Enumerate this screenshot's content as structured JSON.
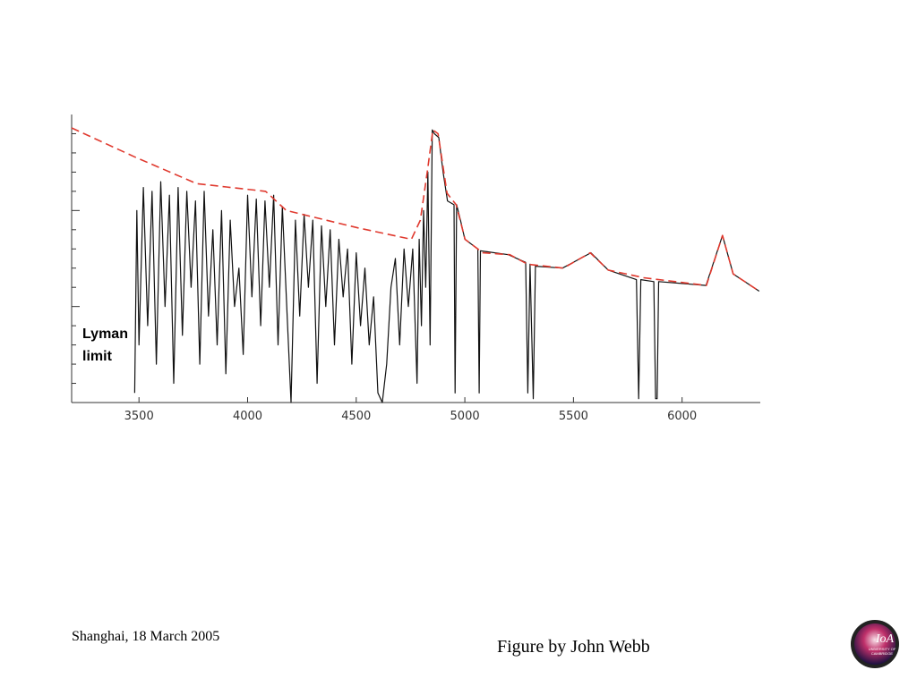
{
  "chart_data": {
    "type": "line",
    "annotation": [
      "Lyman",
      "limit"
    ],
    "xlim": [
      3190,
      6360
    ],
    "xticks": [
      3500,
      4000,
      4500,
      5000,
      5500,
      6000
    ],
    "ylim": [
      0,
      1.5
    ],
    "yticks": [
      0.1,
      0.2,
      0.3,
      0.4,
      0.5,
      0.6,
      0.7,
      0.8,
      0.9,
      1.0,
      1.1,
      1.2,
      1.3,
      1.4
    ],
    "series": [
      {
        "color": "#111111",
        "dash": false,
        "x": [
          3480,
          3490,
          3500,
          3520,
          3540,
          3560,
          3580,
          3600,
          3620,
          3640,
          3660,
          3680,
          3700,
          3720,
          3740,
          3760,
          3780,
          3800,
          3820,
          3840,
          3860,
          3880,
          3900,
          3920,
          3940,
          3960,
          3980,
          4000,
          4020,
          4040,
          4060,
          4080,
          4100,
          4120,
          4140,
          4160,
          4180,
          4200,
          4220,
          4240,
          4260,
          4280,
          4300,
          4320,
          4340,
          4360,
          4380,
          4400,
          4420,
          4440,
          4460,
          4480,
          4500,
          4520,
          4540,
          4560,
          4580,
          4600,
          4620,
          4640,
          4660,
          4680,
          4700,
          4720,
          4740,
          4760,
          4780,
          4790,
          4800,
          4810,
          4820,
          4830,
          4840,
          4850,
          4860,
          4880,
          4900,
          4920,
          4950,
          4955,
          4962,
          4980,
          5000,
          5060,
          5066,
          5072,
          5200,
          5280,
          5290,
          5300,
          5315,
          5325,
          5450,
          5580,
          5660,
          5790,
          5800,
          5810,
          5870,
          5878,
          5885,
          5892,
          6110,
          6186,
          6235,
          6355
        ],
        "values": [
          0.05,
          1.0,
          0.3,
          1.12,
          0.4,
          1.1,
          0.2,
          1.15,
          0.5,
          1.08,
          0.1,
          1.12,
          0.35,
          1.1,
          0.6,
          1.05,
          0.2,
          1.1,
          0.45,
          0.9,
          0.3,
          1.0,
          0.15,
          0.95,
          0.5,
          0.7,
          0.25,
          1.08,
          0.55,
          1.06,
          0.4,
          1.05,
          0.6,
          1.08,
          0.3,
          1.02,
          0.5,
          0.0,
          0.95,
          0.45,
          0.98,
          0.6,
          0.95,
          0.1,
          0.92,
          0.5,
          0.9,
          0.3,
          0.85,
          0.55,
          0.8,
          0.2,
          0.78,
          0.4,
          0.7,
          0.3,
          0.55,
          0.05,
          0.0,
          0.2,
          0.6,
          0.75,
          0.3,
          0.8,
          0.5,
          0.8,
          0.1,
          0.85,
          0.4,
          1.0,
          0.6,
          1.2,
          0.3,
          1.42,
          1.4,
          1.38,
          1.2,
          1.05,
          1.03,
          0.05,
          1.03,
          0.95,
          0.85,
          0.8,
          0.05,
          0.79,
          0.77,
          0.73,
          0.05,
          0.72,
          0.02,
          0.71,
          0.7,
          0.78,
          0.69,
          0.64,
          0.02,
          0.64,
          0.63,
          0.02,
          0.02,
          0.63,
          0.61,
          0.87,
          0.67,
          0.58
        ]
      },
      {
        "color": "#e03a2f",
        "dash": true,
        "x": [
          3190,
          3478,
          3766,
          4083,
          4178,
          4507,
          4754,
          4795,
          4828,
          4853,
          4877,
          4918,
          4960,
          5001,
          5083,
          5207,
          5289,
          5454,
          5577,
          5660,
          5824,
          6112,
          6186,
          6235,
          6355
        ],
        "values": [
          1.43,
          1.28,
          1.14,
          1.1,
          1.0,
          0.91,
          0.85,
          0.95,
          1.21,
          1.42,
          1.4,
          1.09,
          1.03,
          0.85,
          0.78,
          0.77,
          0.72,
          0.7,
          0.78,
          0.69,
          0.65,
          0.61,
          0.87,
          0.67,
          0.58
        ]
      }
    ]
  },
  "footer": {
    "left": "Shanghai, 18 March  2005",
    "credit": "Figure by John Webb"
  },
  "logo": {
    "title": "IoA",
    "lines": [
      "UNIVERSITY OF",
      "CAMBRIDGE"
    ]
  }
}
